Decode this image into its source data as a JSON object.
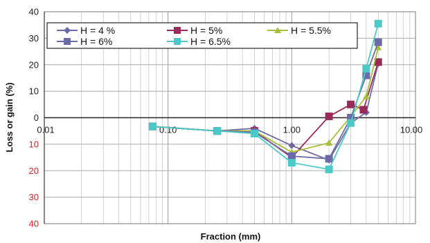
{
  "chart_data": {
    "type": "line",
    "xlabel": "Fraction (mm)",
    "ylabel": "Loss or gain (%)",
    "x_scale": "log",
    "xlim": [
      0.01,
      10
    ],
    "ylim": [
      -40,
      40
    ],
    "x_tick_labels": [
      "0.01",
      "0.10",
      "1.00",
      "10.00"
    ],
    "y_tick_labels": [
      {
        "value": 40,
        "label": "40",
        "color": "#222222"
      },
      {
        "value": 30,
        "label": "30",
        "color": "#222222"
      },
      {
        "value": 20,
        "label": "20",
        "color": "#222222"
      },
      {
        "value": 10,
        "label": "10",
        "color": "#222222"
      },
      {
        "value": 0,
        "label": "0",
        "color": "#222222"
      },
      {
        "value": -10,
        "label": "10",
        "color": "#d0242b"
      },
      {
        "value": -20,
        "label": "20",
        "color": "#d0242b"
      },
      {
        "value": -30,
        "label": "30",
        "color": "#d0242b"
      },
      {
        "value": -40,
        "label": "40",
        "color": "#d0242b"
      }
    ],
    "grid": true,
    "legend_position": "top-left",
    "series": [
      {
        "name": "H = 4 %",
        "color": "#6e6aa8",
        "marker": "diamond",
        "points": [
          [
            0.075,
            -3.3
          ],
          [
            0.25,
            -5
          ],
          [
            0.5,
            -4
          ],
          [
            1.0,
            -10.5
          ],
          [
            2.0,
            -16
          ],
          [
            3.0,
            -2
          ],
          [
            4.0,
            2
          ],
          [
            5.0,
            20.5
          ]
        ]
      },
      {
        "name": "H = 5%",
        "color": "#9a2a5a",
        "marker": "square",
        "points": [
          [
            0.075,
            -3.3
          ],
          [
            0.25,
            -5
          ],
          [
            0.5,
            -5
          ],
          [
            1.0,
            -15
          ],
          [
            2.0,
            0.5
          ],
          [
            3.0,
            5
          ],
          [
            3.8,
            3
          ],
          [
            5.0,
            21
          ]
        ]
      },
      {
        "name": "H = 5.5%",
        "color": "#a6c03a",
        "marker": "triangle",
        "points": [
          [
            0.075,
            -3.3
          ],
          [
            0.25,
            -5
          ],
          [
            0.5,
            -5
          ],
          [
            1.0,
            -13
          ],
          [
            2.0,
            -9.5
          ],
          [
            3.0,
            0.5
          ],
          [
            4.0,
            8
          ],
          [
            5.0,
            26.5
          ]
        ]
      },
      {
        "name": "H = 6%",
        "color": "#6d6aa8",
        "marker": "square",
        "points": [
          [
            0.075,
            -3.3
          ],
          [
            0.25,
            -5
          ],
          [
            0.5,
            -5.5
          ],
          [
            1.0,
            -14.5
          ],
          [
            2.0,
            -15.5
          ],
          [
            3.0,
            0
          ],
          [
            4.0,
            16
          ],
          [
            5.0,
            28.5
          ]
        ]
      },
      {
        "name": "H = 6.5%",
        "color": "#4cc8c8",
        "marker": "square",
        "points": [
          [
            0.075,
            -3.3
          ],
          [
            0.25,
            -5
          ],
          [
            0.5,
            -6
          ],
          [
            1.0,
            -17
          ],
          [
            2.0,
            -19.5
          ],
          [
            3.0,
            -2
          ],
          [
            4.0,
            18.5
          ],
          [
            5.0,
            35.5
          ]
        ]
      }
    ]
  }
}
